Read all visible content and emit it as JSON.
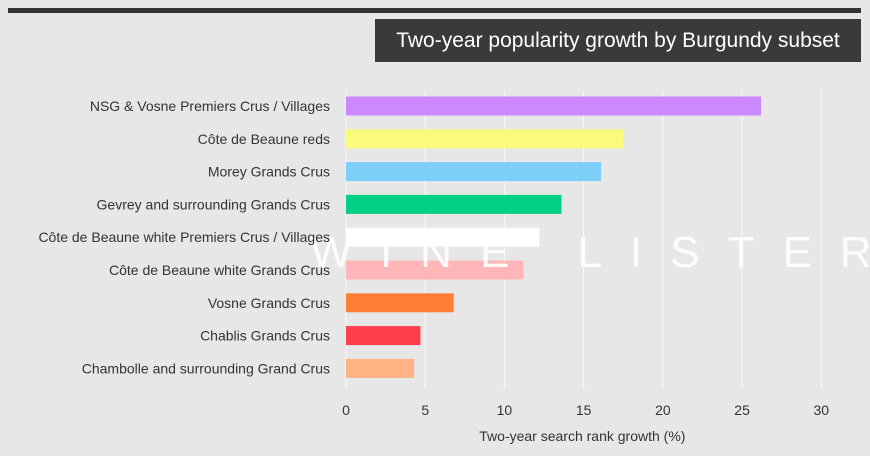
{
  "chart_data": {
    "type": "bar",
    "orientation": "horizontal",
    "title": "Two-year popularity growth by Burgundy subset",
    "xlabel": "Two-year search rank growth (%)",
    "ylabel": "",
    "xlim": [
      0,
      32
    ],
    "ticks": [
      0,
      5,
      10,
      15,
      20,
      25,
      30
    ],
    "tick_labels": [
      "0",
      "5",
      "10",
      "15",
      "20",
      "25",
      "30"
    ],
    "grid": true,
    "categories": [
      "NSG & Vosne Premiers Crus / Villages",
      "Côte de Beaune reds",
      "Morey Grands Crus",
      "Gevrey and surrounding Grands Crus",
      "Côte de Beaune white Premiers Crus / Villages",
      "Côte de Beaune white Grands Crus",
      "Vosne Grands Crus",
      "Chablis Grands Crus",
      "Chambolle and surrounding Grand Crus"
    ],
    "values": [
      26.2,
      17.5,
      16.1,
      13.6,
      12.2,
      11.2,
      6.8,
      4.7,
      4.3
    ],
    "colors": [
      "#cc88ff",
      "#fafa7e",
      "#7ecefa",
      "#00d084",
      "#ffffff",
      "#ffb6b8",
      "#ff7f36",
      "#ff3e4e",
      "#ffb385"
    ],
    "watermark": "WINE LISTER"
  }
}
